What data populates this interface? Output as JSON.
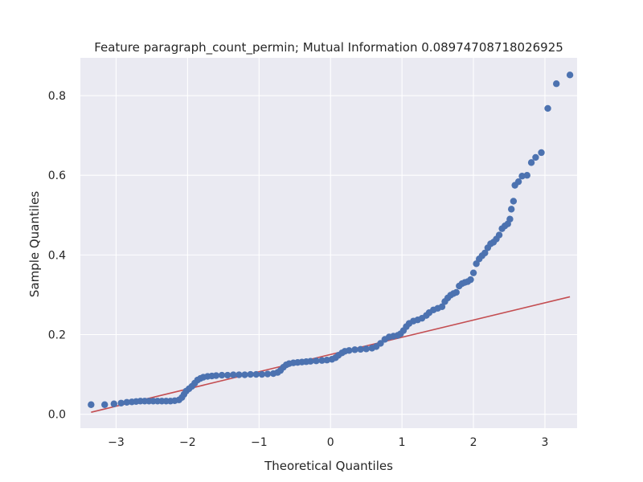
{
  "chart_data": {
    "type": "scatter",
    "title": "Feature paragraph_count_permin; Mutual Information 0.08974708718026925",
    "xlabel": "Theoretical Quantiles",
    "ylabel": "Sample Quantiles",
    "xlim": [
      -3.5,
      3.45
    ],
    "ylim": [
      -0.035,
      0.895
    ],
    "xticks": [
      -3,
      -2,
      -1,
      0,
      1,
      2,
      3
    ],
    "xtick_labels": [
      "−3",
      "−2",
      "−1",
      "0",
      "1",
      "2",
      "3"
    ],
    "yticks": [
      0.0,
      0.2,
      0.4,
      0.6,
      0.8
    ],
    "ytick_labels": [
      "0.0",
      "0.2",
      "0.4",
      "0.6",
      "0.8"
    ],
    "grid": true,
    "background_color": "#eaeaf2",
    "point_color": "#4c72b0",
    "line_color": "#c44e52",
    "reference_line": {
      "x": [
        -3.35,
        3.35
      ],
      "y": [
        0.005,
        0.295
      ]
    },
    "points": [
      [
        -3.35,
        0.024
      ],
      [
        -3.16,
        0.024
      ],
      [
        -3.03,
        0.026
      ],
      [
        -2.93,
        0.028
      ],
      [
        -2.85,
        0.03
      ],
      [
        -2.78,
        0.031
      ],
      [
        -2.72,
        0.032
      ],
      [
        -2.66,
        0.033
      ],
      [
        -2.6,
        0.033
      ],
      [
        -2.54,
        0.033
      ],
      [
        -2.48,
        0.033
      ],
      [
        -2.42,
        0.033
      ],
      [
        -2.36,
        0.033
      ],
      [
        -2.3,
        0.033
      ],
      [
        -2.24,
        0.033
      ],
      [
        -2.18,
        0.034
      ],
      [
        -2.12,
        0.036
      ],
      [
        -2.08,
        0.042
      ],
      [
        -2.05,
        0.05
      ],
      [
        -2.02,
        0.058
      ],
      [
        -1.98,
        0.064
      ],
      [
        -1.94,
        0.07
      ],
      [
        -1.9,
        0.078
      ],
      [
        -1.86,
        0.086
      ],
      [
        -1.82,
        0.09
      ],
      [
        -1.78,
        0.093
      ],
      [
        -1.72,
        0.095
      ],
      [
        -1.66,
        0.096
      ],
      [
        -1.6,
        0.097
      ],
      [
        -1.52,
        0.098
      ],
      [
        -1.44,
        0.098
      ],
      [
        -1.36,
        0.099
      ],
      [
        -1.28,
        0.099
      ],
      [
        -1.2,
        0.099
      ],
      [
        -1.12,
        0.1
      ],
      [
        -1.04,
        0.1
      ],
      [
        -0.96,
        0.1
      ],
      [
        -0.88,
        0.101
      ],
      [
        -0.8,
        0.102
      ],
      [
        -0.74,
        0.105
      ],
      [
        -0.7,
        0.11
      ],
      [
        -0.66,
        0.118
      ],
      [
        -0.62,
        0.124
      ],
      [
        -0.58,
        0.127
      ],
      [
        -0.52,
        0.129
      ],
      [
        -0.46,
        0.13
      ],
      [
        -0.4,
        0.131
      ],
      [
        -0.34,
        0.132
      ],
      [
        -0.28,
        0.133
      ],
      [
        -0.2,
        0.134
      ],
      [
        -0.12,
        0.135
      ],
      [
        -0.05,
        0.136
      ],
      [
        0.02,
        0.138
      ],
      [
        0.07,
        0.142
      ],
      [
        0.11,
        0.148
      ],
      [
        0.16,
        0.154
      ],
      [
        0.2,
        0.158
      ],
      [
        0.26,
        0.16
      ],
      [
        0.34,
        0.162
      ],
      [
        0.42,
        0.163
      ],
      [
        0.5,
        0.164
      ],
      [
        0.58,
        0.166
      ],
      [
        0.64,
        0.17
      ],
      [
        0.7,
        0.178
      ],
      [
        0.76,
        0.188
      ],
      [
        0.82,
        0.194
      ],
      [
        0.88,
        0.196
      ],
      [
        0.94,
        0.198
      ],
      [
        0.98,
        0.202
      ],
      [
        1.02,
        0.21
      ],
      [
        1.06,
        0.22
      ],
      [
        1.1,
        0.228
      ],
      [
        1.16,
        0.234
      ],
      [
        1.22,
        0.237
      ],
      [
        1.28,
        0.241
      ],
      [
        1.34,
        0.248
      ],
      [
        1.38,
        0.255
      ],
      [
        1.44,
        0.262
      ],
      [
        1.5,
        0.266
      ],
      [
        1.56,
        0.27
      ],
      [
        1.6,
        0.283
      ],
      [
        1.64,
        0.292
      ],
      [
        1.68,
        0.299
      ],
      [
        1.72,
        0.303
      ],
      [
        1.76,
        0.306
      ],
      [
        1.8,
        0.322
      ],
      [
        1.84,
        0.328
      ],
      [
        1.88,
        0.331
      ],
      [
        1.92,
        0.333
      ],
      [
        1.96,
        0.338
      ],
      [
        2.0,
        0.355
      ],
      [
        2.04,
        0.378
      ],
      [
        2.08,
        0.39
      ],
      [
        2.12,
        0.398
      ],
      [
        2.16,
        0.405
      ],
      [
        2.2,
        0.418
      ],
      [
        2.24,
        0.428
      ],
      [
        2.28,
        0.432
      ],
      [
        2.32,
        0.44
      ],
      [
        2.36,
        0.45
      ],
      [
        2.4,
        0.466
      ],
      [
        2.44,
        0.473
      ],
      [
        2.48,
        0.478
      ],
      [
        2.51,
        0.49
      ],
      [
        2.53,
        0.515
      ],
      [
        2.56,
        0.535
      ],
      [
        2.58,
        0.575
      ],
      [
        2.63,
        0.584
      ],
      [
        2.68,
        0.598
      ],
      [
        2.75,
        0.6
      ],
      [
        2.81,
        0.632
      ],
      [
        2.87,
        0.645
      ],
      [
        2.95,
        0.657
      ],
      [
        3.04,
        0.768
      ],
      [
        3.16,
        0.83
      ],
      [
        3.35,
        0.852
      ]
    ]
  }
}
